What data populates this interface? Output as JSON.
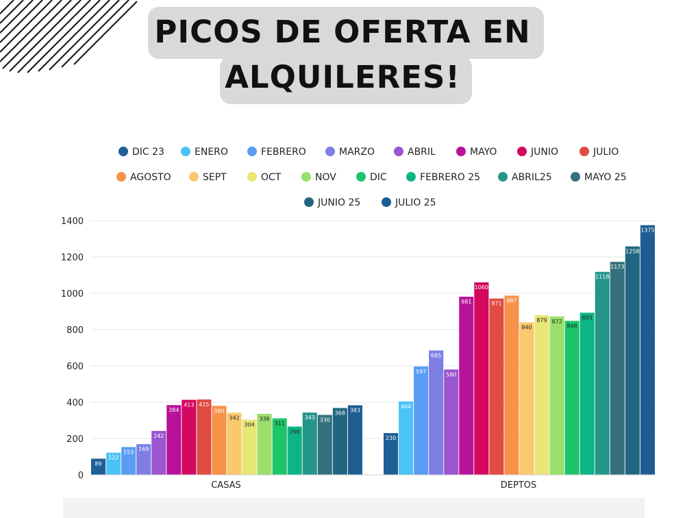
{
  "title": {
    "line1": "PICOS DE OFERTA EN",
    "line2": "ALQUILERES!"
  },
  "chart_data": {
    "type": "bar",
    "categories": [
      "CASAS",
      "DEPTOS"
    ],
    "ylim": [
      0,
      1400
    ],
    "yticks": [
      0,
      200,
      400,
      600,
      800,
      1000,
      1200,
      1400
    ],
    "grid": true,
    "legend_position": "top",
    "series": [
      {
        "name": "DIC 23",
        "color": "#1f5f96",
        "values": [
          89,
          230
        ]
      },
      {
        "name": "ENERO",
        "color": "#4cc3f6",
        "values": [
          122,
          404
        ]
      },
      {
        "name": "FEBRERO",
        "color": "#5b9df4",
        "values": [
          153,
          597
        ]
      },
      {
        "name": "MARZO",
        "color": "#7d7fe5",
        "values": [
          169,
          685
        ]
      },
      {
        "name": "ABRIL",
        "color": "#9b55cf",
        "values": [
          242,
          580
        ]
      },
      {
        "name": "MAYO",
        "color": "#b8129a",
        "values": [
          384,
          981
        ]
      },
      {
        "name": "JUNIO",
        "color": "#d4085f",
        "values": [
          413,
          1060
        ]
      },
      {
        "name": "JULIO",
        "color": "#e04b44",
        "values": [
          415,
          971
        ]
      },
      {
        "name": "AGOSTO",
        "color": "#f7924a",
        "values": [
          380,
          987
        ]
      },
      {
        "name": "SEPT",
        "color": "#fcc86e",
        "values": [
          342,
          840
        ]
      },
      {
        "name": "OCT",
        "color": "#e8e674",
        "values": [
          304,
          879
        ]
      },
      {
        "name": "NOV",
        "color": "#9ade6b",
        "values": [
          336,
          872
        ]
      },
      {
        "name": "DIC",
        "color": "#1dc46a",
        "values": [
          311,
          848
        ]
      },
      {
        "name": "FEBRERO 25",
        "color": "#0db586",
        "values": [
          266,
          893
        ]
      },
      {
        "name": "ABRIL25",
        "color": "#25958a",
        "values": [
          343,
          1118
        ]
      },
      {
        "name": "MAYO 25",
        "color": "#35717c",
        "values": [
          330,
          1173
        ]
      },
      {
        "name": "JUNIO 25",
        "color": "#216681",
        "values": [
          368,
          1258
        ]
      },
      {
        "name": "JULIO 25",
        "color": "#1d5d91",
        "values": [
          383,
          1375
        ]
      }
    ]
  }
}
